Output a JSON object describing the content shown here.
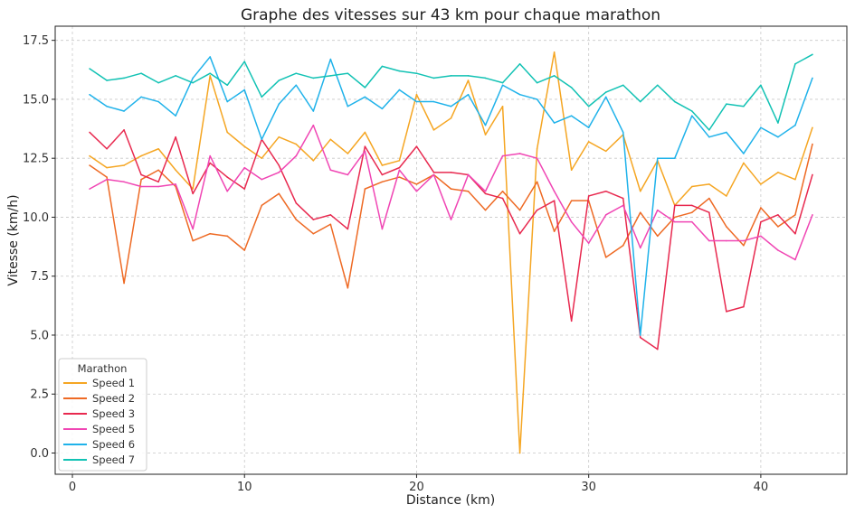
{
  "chart_data": {
    "type": "line",
    "title": "Graphe des vitesses sur 43 km pour chaque marathon",
    "xlabel": "Distance (km)",
    "ylabel": "Vitesse (km/h)",
    "xlim": [
      -1,
      45
    ],
    "ylim": [
      -0.9,
      18.1
    ],
    "xticks": [
      0,
      10,
      20,
      30,
      40
    ],
    "yticks": [
      0.0,
      2.5,
      5.0,
      7.5,
      10.0,
      12.5,
      15.0,
      17.5
    ],
    "xtick_labels": [
      "0",
      "10",
      "20",
      "30",
      "40"
    ],
    "ytick_labels": [
      "0.0",
      "2.5",
      "5.0",
      "7.5",
      "10.0",
      "12.5",
      "15.0",
      "17.5"
    ],
    "grid": true,
    "legend_title": "Marathon",
    "legend_position": "lower-left",
    "x": [
      1,
      2,
      3,
      4,
      5,
      6,
      7,
      8,
      9,
      10,
      11,
      12,
      13,
      14,
      15,
      16,
      17,
      18,
      19,
      20,
      21,
      22,
      23,
      24,
      25,
      26,
      27,
      28,
      29,
      30,
      31,
      32,
      33,
      34,
      35,
      36,
      37,
      38,
      39,
      40,
      41,
      42,
      43
    ],
    "series": [
      {
        "name": "Speed 1",
        "color": "#F5A623",
        "values": [
          12.6,
          12.1,
          12.2,
          12.6,
          12.9,
          12.0,
          11.2,
          16.0,
          13.6,
          13.0,
          12.5,
          13.4,
          13.1,
          12.4,
          13.3,
          12.7,
          13.6,
          12.2,
          12.4,
          15.2,
          13.7,
          14.2,
          15.8,
          13.5,
          14.7,
          0.0,
          12.9,
          17.0,
          12.0,
          13.2,
          12.8,
          13.5,
          11.1,
          12.4,
          10.5,
          11.3,
          11.4,
          10.9,
          12.3,
          11.4,
          11.9,
          11.6,
          13.8
        ]
      },
      {
        "name": "Speed 2",
        "color": "#EE6A24",
        "values": [
          12.2,
          11.7,
          7.2,
          11.6,
          12.0,
          11.3,
          9.0,
          9.3,
          9.2,
          8.6,
          10.5,
          11.0,
          9.9,
          9.3,
          9.7,
          7.0,
          11.2,
          11.5,
          11.7,
          11.4,
          11.8,
          11.2,
          11.1,
          10.3,
          11.1,
          10.3,
          11.5,
          9.4,
          10.7,
          10.7,
          8.3,
          8.8,
          10.2,
          9.2,
          10.0,
          10.2,
          10.8,
          9.6,
          8.8,
          10.4,
          9.6,
          10.1,
          13.1
        ]
      },
      {
        "name": "Speed 3",
        "color": "#E8294F",
        "values": [
          13.6,
          12.9,
          13.7,
          11.8,
          11.5,
          13.4,
          11.0,
          12.3,
          11.7,
          11.2,
          13.3,
          12.2,
          10.6,
          9.9,
          10.1,
          9.5,
          13.0,
          11.8,
          12.1,
          13.0,
          11.9,
          11.9,
          11.8,
          11.0,
          10.8,
          9.3,
          10.3,
          10.7,
          5.6,
          10.9,
          11.1,
          10.8,
          4.9,
          4.4,
          10.5,
          10.5,
          10.2,
          6.0,
          6.2,
          9.8,
          10.1,
          9.3,
          11.8
        ]
      },
      {
        "name": "Speed 5",
        "color": "#F046B4",
        "values": [
          11.2,
          11.6,
          11.5,
          11.3,
          11.3,
          11.4,
          9.5,
          12.6,
          11.1,
          12.1,
          11.6,
          11.9,
          12.6,
          13.9,
          12.0,
          11.8,
          12.8,
          9.5,
          12.0,
          11.1,
          11.8,
          9.9,
          11.8,
          11.1,
          12.6,
          12.7,
          12.5,
          11.1,
          9.8,
          8.9,
          10.1,
          10.5,
          8.7,
          10.3,
          9.8,
          9.8,
          9.0,
          9.0,
          9.0,
          9.2,
          8.6,
          8.2,
          10.1
        ]
      },
      {
        "name": "Speed 6",
        "color": "#1FB2EA",
        "values": [
          15.2,
          14.7,
          14.5,
          15.1,
          14.9,
          14.3,
          15.9,
          16.8,
          14.9,
          15.4,
          13.3,
          14.8,
          15.6,
          14.5,
          16.7,
          14.7,
          15.1,
          14.6,
          15.4,
          14.9,
          14.9,
          14.7,
          15.2,
          13.9,
          15.6,
          15.2,
          15.0,
          14.0,
          14.3,
          13.8,
          15.1,
          13.6,
          5.0,
          12.5,
          12.5,
          14.3,
          13.4,
          13.6,
          12.7,
          13.8,
          13.4,
          13.9,
          15.9
        ]
      },
      {
        "name": "Speed 7",
        "color": "#12C2B4",
        "values": [
          16.3,
          15.8,
          15.9,
          16.1,
          15.7,
          16.0,
          15.7,
          16.1,
          15.6,
          16.6,
          15.1,
          15.8,
          16.1,
          15.9,
          16.0,
          16.1,
          15.5,
          16.4,
          16.2,
          16.1,
          15.9,
          16.0,
          16.0,
          15.9,
          15.7,
          16.5,
          15.7,
          16.0,
          15.5,
          14.7,
          15.3,
          15.6,
          14.9,
          15.6,
          14.9,
          14.5,
          13.7,
          14.8,
          14.7,
          15.6,
          14.0,
          16.5,
          16.9
        ]
      }
    ]
  }
}
